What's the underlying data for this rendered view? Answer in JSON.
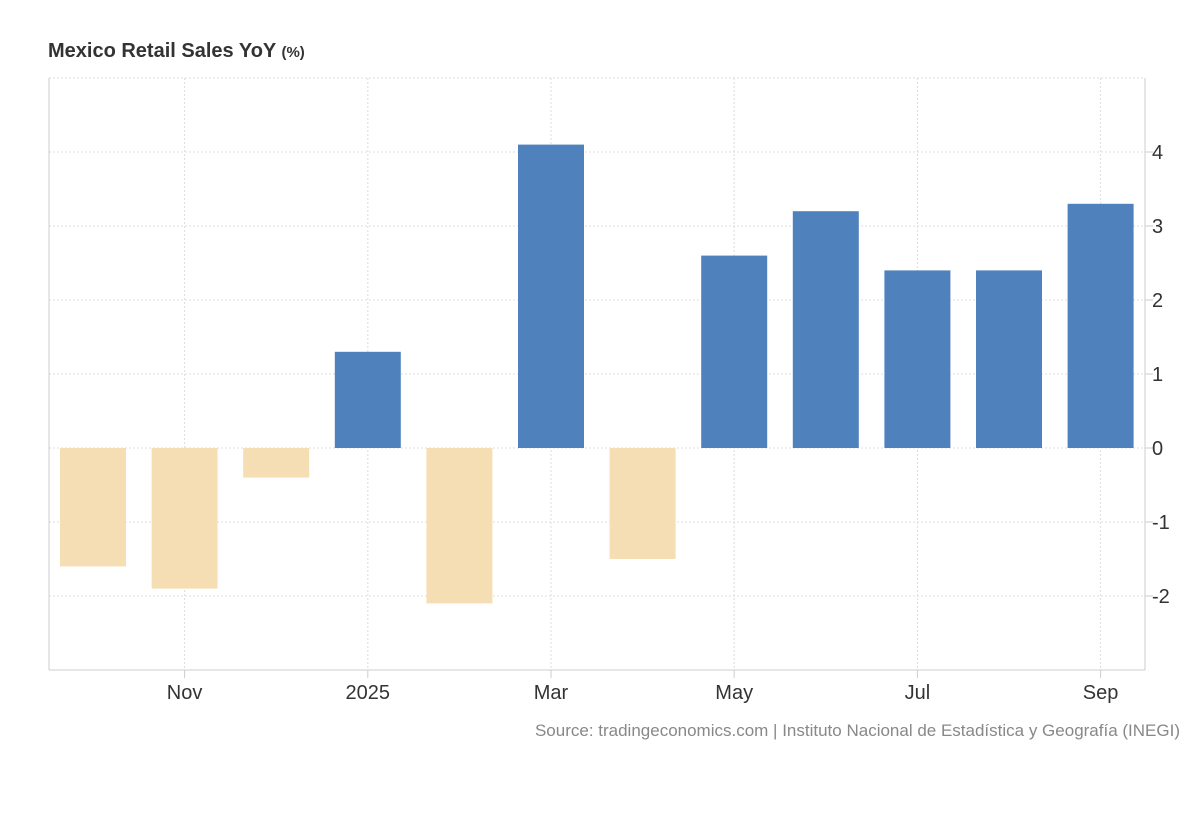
{
  "chart_data": {
    "type": "bar",
    "title": "Mexico Retail Sales YoY",
    "unit": "(%)",
    "categories": [
      "2024-10",
      "2024-11",
      "2024-12",
      "2025-01",
      "2025-02",
      "2025-03",
      "2025-04",
      "2025-05",
      "2025-06",
      "2025-07",
      "2025-08",
      "2025-09"
    ],
    "values": [
      -1.6,
      -1.9,
      -0.4,
      1.3,
      -2.1,
      4.1,
      -1.5,
      2.6,
      3.2,
      2.4,
      2.4,
      3.3
    ],
    "x_tick_labels": [
      {
        "index": 1,
        "label": "Nov"
      },
      {
        "index": 3,
        "label": "2025"
      },
      {
        "index": 5,
        "label": "Mar"
      },
      {
        "index": 7,
        "label": "May"
      },
      {
        "index": 9,
        "label": "Jul"
      },
      {
        "index": 11,
        "label": "Sep"
      }
    ],
    "y_ticks": [
      -2,
      -1,
      0,
      1,
      2,
      3,
      4
    ],
    "ylim": [
      -3,
      5
    ],
    "grid": true,
    "colors": {
      "positive": "#4f81bd",
      "negative": "#f5deb3"
    },
    "xlabel": "",
    "ylabel": ""
  },
  "source": "Source: tradingeconomics.com | Instituto Nacional de Estadística y Geografía (INEGI)"
}
